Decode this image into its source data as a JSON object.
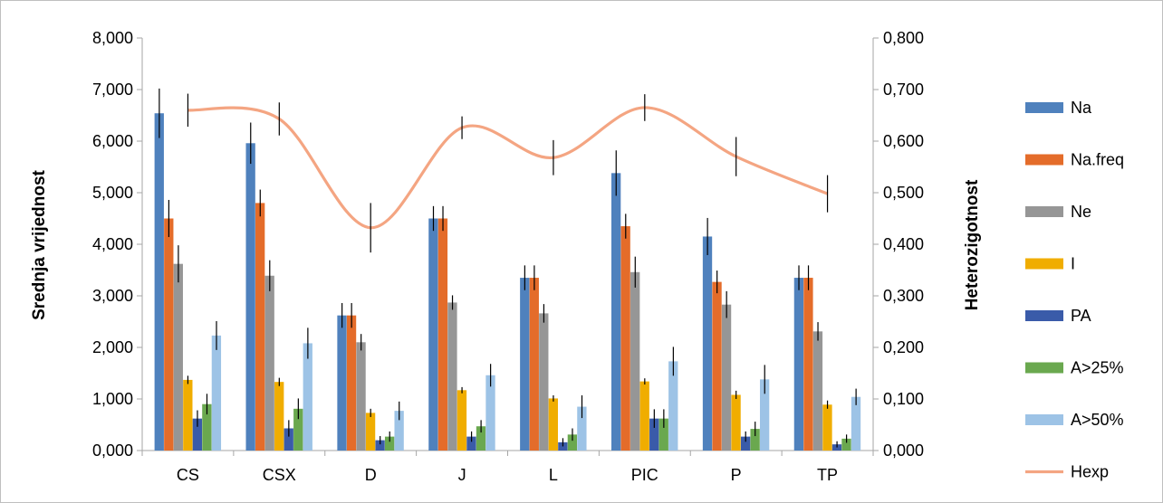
{
  "chart_data": {
    "type": "bar",
    "categories": [
      "CS",
      "CSX",
      "D",
      "J",
      "L",
      "PIC",
      "P",
      "TP"
    ],
    "ylabel": "Srednja vrijednost",
    "y2label": "Heterozigotnost",
    "ylim": [
      0,
      8
    ],
    "y2lim": [
      0,
      0.8
    ],
    "yticks": [
      "0,000",
      "1,000",
      "2,000",
      "3,000",
      "4,000",
      "5,000",
      "6,000",
      "7,000",
      "8,000"
    ],
    "y2ticks": [
      "0,000",
      "0,100",
      "0,200",
      "0,300",
      "0,400",
      "0,500",
      "0,600",
      "0,700",
      "0,800"
    ],
    "legend_position": "right",
    "series": [
      {
        "name": "Na",
        "color": "#4f81bd",
        "values": [
          6.54,
          5.96,
          2.62,
          4.5,
          3.35,
          5.38,
          4.15,
          3.35
        ],
        "errors": [
          0.48,
          0.4,
          0.24,
          0.24,
          0.24,
          0.44,
          0.36,
          0.24
        ]
      },
      {
        "name": "Na.freq",
        "color": "#e46c2a",
        "values": [
          4.5,
          4.8,
          2.62,
          4.5,
          3.35,
          4.35,
          3.27,
          3.35
        ],
        "errors": [
          0.36,
          0.26,
          0.24,
          0.24,
          0.24,
          0.24,
          0.22,
          0.24
        ]
      },
      {
        "name": "Ne",
        "color": "#969696",
        "values": [
          3.62,
          3.39,
          2.1,
          2.87,
          2.66,
          3.46,
          2.83,
          2.31
        ],
        "errors": [
          0.36,
          0.3,
          0.16,
          0.14,
          0.18,
          0.3,
          0.26,
          0.18
        ]
      },
      {
        "name": "I",
        "color": "#f0ad00",
        "values": [
          1.37,
          1.33,
          0.73,
          1.17,
          1.01,
          1.34,
          1.08,
          0.89
        ],
        "errors": [
          0.08,
          0.08,
          0.08,
          0.06,
          0.06,
          0.06,
          0.08,
          0.08
        ]
      },
      {
        "name": "PA",
        "color": "#3a5ba9",
        "values": [
          0.62,
          0.43,
          0.2,
          0.27,
          0.16,
          0.62,
          0.27,
          0.12
        ],
        "errors": [
          0.16,
          0.16,
          0.08,
          0.1,
          0.08,
          0.18,
          0.1,
          0.06
        ]
      },
      {
        "name": "A>25%",
        "color": "#6aa84f",
        "values": [
          0.9,
          0.81,
          0.27,
          0.47,
          0.31,
          0.62,
          0.42,
          0.23
        ],
        "errors": [
          0.2,
          0.2,
          0.1,
          0.12,
          0.12,
          0.18,
          0.14,
          0.08
        ]
      },
      {
        "name": "A>50%",
        "color": "#9dc3e6",
        "values": [
          2.23,
          2.08,
          0.77,
          1.46,
          0.85,
          1.73,
          1.38,
          1.04
        ],
        "errors": [
          0.28,
          0.3,
          0.18,
          0.22,
          0.22,
          0.28,
          0.28,
          0.16
        ]
      }
    ],
    "line_series": {
      "name": "Hexp",
      "color": "#f4a582",
      "axis": "right",
      "values": [
        0.66,
        0.643,
        0.432,
        0.626,
        0.568,
        0.665,
        0.57,
        0.498
      ],
      "errors": [
        0.032,
        0.032,
        0.048,
        0.022,
        0.034,
        0.026,
        0.038,
        0.036
      ]
    }
  }
}
